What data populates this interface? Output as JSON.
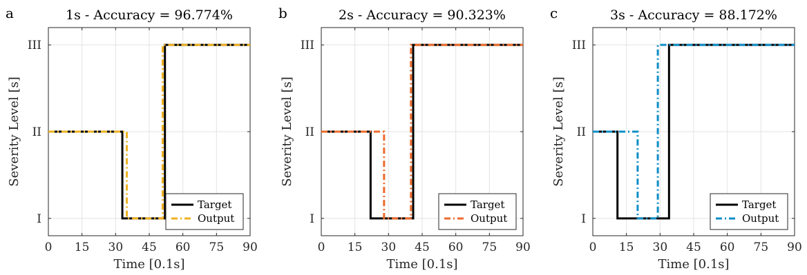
{
  "chart_data": [
    {
      "type": "line",
      "panel_label": "a",
      "title": "1s - Accuracy = 96.774%",
      "xlabel": "Time [0.1s]",
      "ylabel": "Severity Level [s]",
      "xlim": [
        0,
        90
      ],
      "ylim": [
        0.8,
        3.2
      ],
      "xticks": [
        0,
        15,
        30,
        45,
        60,
        75,
        90
      ],
      "xtick_labels": [
        "0",
        "15",
        "30",
        "45",
        "60",
        "75",
        "90"
      ],
      "yticks": [
        1,
        2,
        3
      ],
      "ytick_labels": [
        "I",
        "II",
        "III"
      ],
      "grid": true,
      "legend_position": "bottom-right",
      "series": [
        {
          "name": "Target",
          "style": "solid",
          "color": "#000000",
          "x": [
            0,
            33,
            33,
            52,
            52,
            90
          ],
          "y": [
            2,
            2,
            1,
            1,
            3,
            3
          ]
        },
        {
          "name": "Output",
          "style": "dash-dot",
          "color": "#EDB120",
          "x": [
            0,
            35,
            35,
            51,
            51,
            90
          ],
          "y": [
            2,
            2,
            1,
            1,
            3,
            3
          ]
        }
      ]
    },
    {
      "type": "line",
      "panel_label": "b",
      "title": "2s - Accuracy = 90.323%",
      "xlabel": "Time [0.1s]",
      "ylabel": "Severity Level [s]",
      "xlim": [
        0,
        90
      ],
      "ylim": [
        0.8,
        3.2
      ],
      "xticks": [
        0,
        15,
        30,
        45,
        60,
        75,
        90
      ],
      "xtick_labels": [
        "0",
        "15",
        "30",
        "45",
        "60",
        "75",
        "90"
      ],
      "yticks": [
        1,
        2,
        3
      ],
      "ytick_labels": [
        "I",
        "II",
        "III"
      ],
      "grid": true,
      "legend_position": "bottom-right",
      "series": [
        {
          "name": "Target",
          "style": "solid",
          "color": "#000000",
          "x": [
            0,
            22,
            22,
            41,
            41,
            90
          ],
          "y": [
            2,
            2,
            1,
            1,
            3,
            3
          ]
        },
        {
          "name": "Output",
          "style": "dash-dot",
          "color": "#ED6A2B",
          "x": [
            0,
            28,
            28,
            40,
            40,
            90
          ],
          "y": [
            2,
            2,
            1,
            1,
            3,
            3
          ]
        }
      ]
    },
    {
      "type": "line",
      "panel_label": "c",
      "title": "3s - Accuracy = 88.172%",
      "xlabel": "Time [0.1s]",
      "ylabel": "Severity Level [s]",
      "xlim": [
        0,
        90
      ],
      "ylim": [
        0.8,
        3.2
      ],
      "xticks": [
        0,
        15,
        30,
        45,
        60,
        75,
        90
      ],
      "xtick_labels": [
        "0",
        "15",
        "30",
        "45",
        "60",
        "75",
        "90"
      ],
      "yticks": [
        1,
        2,
        3
      ],
      "ytick_labels": [
        "I",
        "II",
        "III"
      ],
      "grid": true,
      "legend_position": "bottom-right",
      "series": [
        {
          "name": "Target",
          "style": "solid",
          "color": "#000000",
          "x": [
            0,
            11,
            11,
            34,
            34,
            90
          ],
          "y": [
            2,
            2,
            1,
            1,
            3,
            3
          ]
        },
        {
          "name": "Output",
          "style": "dash-dot",
          "color": "#0E8DC6",
          "x": [
            0,
            20,
            20,
            29,
            29,
            90
          ],
          "y": [
            2,
            2,
            1,
            1,
            3,
            3
          ]
        }
      ]
    }
  ]
}
